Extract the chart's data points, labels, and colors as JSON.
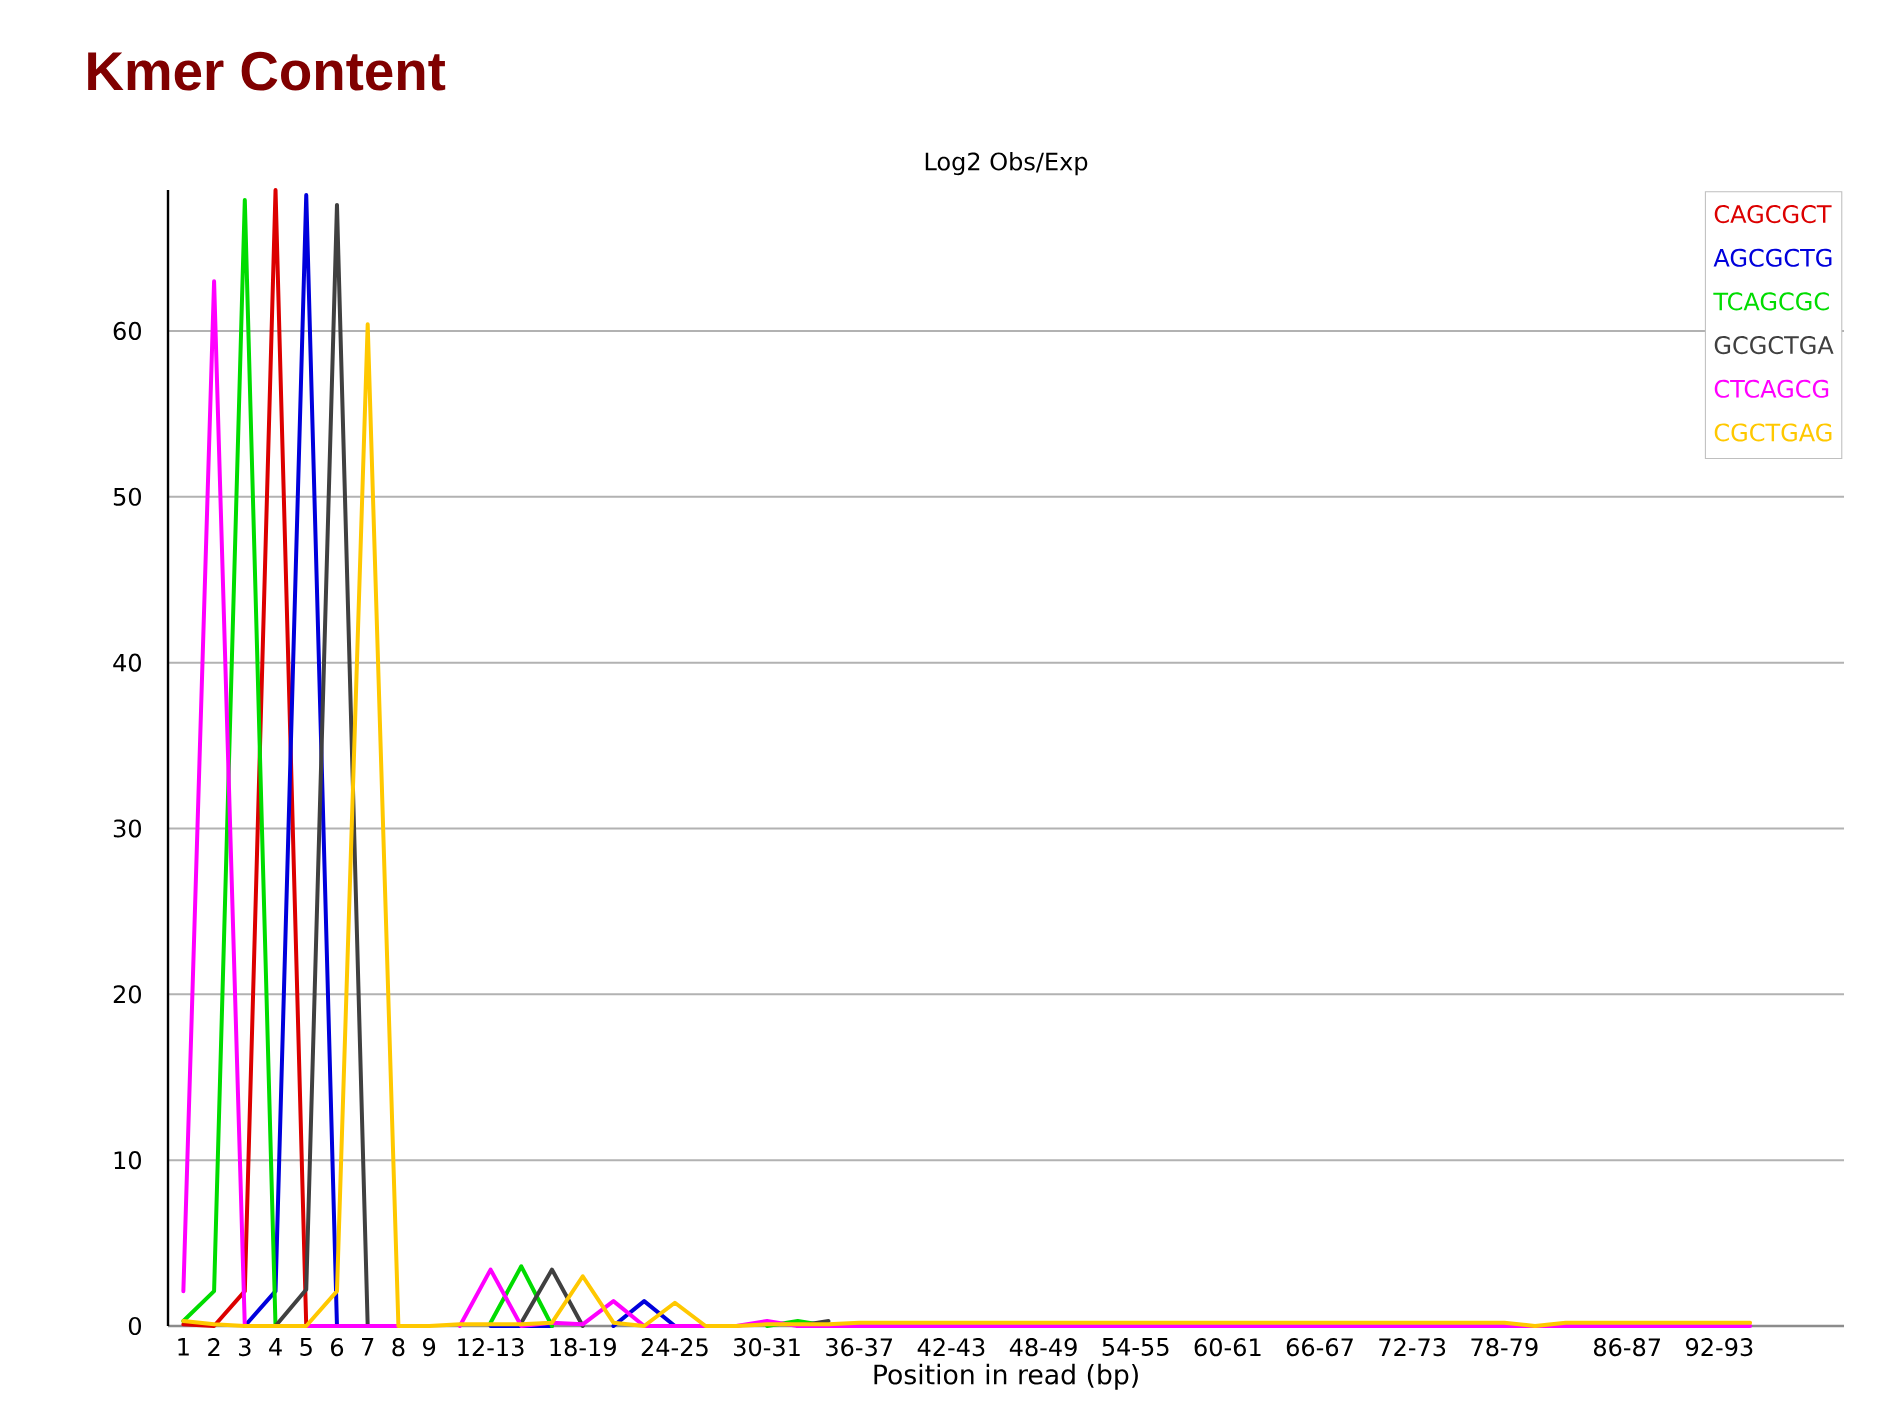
{
  "chart_data": {
    "type": "line",
    "title": "Kmer Content",
    "subtitle": "Log2 Obs/Exp",
    "xlabel": "Position in read (bp)",
    "categories": [
      "1",
      "2",
      "3",
      "4",
      "5",
      "6",
      "7",
      "8",
      "9",
      null,
      "12-13",
      null,
      null,
      "18-19",
      null,
      null,
      "24-25",
      null,
      null,
      "30-31",
      null,
      null,
      "36-37",
      null,
      null,
      "42-43",
      null,
      null,
      "48-49",
      null,
      null,
      "54-55",
      null,
      null,
      "60-61",
      null,
      null,
      "66-67",
      null,
      null,
      "72-73",
      null,
      null,
      "78-79",
      null,
      null,
      null,
      "86-87",
      null,
      null,
      "92-93",
      null
    ],
    "series": [
      {
        "name": "CAGCGCT",
        "color": "#dc0000",
        "values": [
          0.1,
          0,
          2.1,
          68.5,
          0,
          null,
          null,
          null,
          null,
          null,
          null,
          null,
          null,
          null,
          null,
          null,
          null,
          null,
          null,
          null,
          null,
          null,
          null,
          null,
          null,
          null,
          null,
          null,
          null,
          null,
          null,
          null,
          null,
          null,
          null,
          null,
          null,
          null,
          null,
          null,
          null,
          null,
          null,
          null,
          null,
          null,
          null,
          null,
          null,
          null,
          null,
          null
        ]
      },
      {
        "name": "AGCGCTG",
        "color": "#0000dc",
        "values": [
          null,
          null,
          0,
          2.1,
          68.2,
          0,
          null,
          null,
          null,
          null,
          0,
          0,
          0,
          null,
          0,
          1.5,
          0,
          null,
          null,
          null,
          null,
          null,
          null,
          null,
          null,
          null,
          null,
          null,
          null,
          null,
          null,
          null,
          null,
          null,
          null,
          null,
          null,
          null,
          null,
          null,
          null,
          null,
          null,
          null,
          null,
          null,
          null,
          null,
          null,
          null,
          null,
          null
        ]
      },
      {
        "name": "TCAGCGC",
        "color": "#00dc00",
        "values": [
          0.3,
          2.1,
          67.9,
          0,
          null,
          null,
          null,
          null,
          null,
          null,
          0.2,
          3.6,
          0,
          null,
          null,
          null,
          null,
          null,
          null,
          0,
          0.3,
          0,
          null,
          null,
          null,
          null,
          null,
          null,
          null,
          null,
          null,
          null,
          null,
          null,
          null,
          null,
          null,
          null,
          null,
          null,
          null,
          null,
          null,
          null,
          null,
          null,
          null,
          null,
          null,
          null,
          null,
          null
        ]
      },
      {
        "name": "GCGCTGA",
        "color": "#404040",
        "values": [
          null,
          null,
          null,
          0,
          2.2,
          67.6,
          0,
          null,
          null,
          null,
          null,
          0.2,
          3.4,
          0,
          null,
          null,
          null,
          null,
          null,
          null,
          0,
          0.3,
          null,
          null,
          null,
          null,
          null,
          null,
          null,
          null,
          null,
          null,
          null,
          null,
          null,
          null,
          null,
          null,
          null,
          null,
          null,
          null,
          null,
          null,
          null,
          null,
          null,
          null,
          null,
          null,
          null,
          null
        ]
      },
      {
        "name": "CTCAGCG",
        "color": "#ff00ff",
        "values": [
          2.1,
          63.0,
          0,
          null,
          0,
          0,
          0,
          0,
          null,
          0,
          3.4,
          0,
          0.2,
          0.1,
          1.5,
          0,
          0,
          0,
          0,
          0.3,
          0,
          0,
          0,
          0,
          0,
          0,
          0,
          0,
          0,
          0,
          0,
          0,
          0,
          0,
          0,
          0,
          0,
          0,
          0,
          0,
          0,
          0,
          0,
          0,
          0,
          0,
          0,
          0,
          0,
          0,
          0,
          0
        ]
      },
      {
        "name": "CGCTGAG",
        "color": "#ffc800",
        "values": [
          0.3,
          0.1,
          0,
          0,
          0,
          2.1,
          60.4,
          0,
          0,
          0.1,
          0.1,
          0.1,
          0.2,
          3.0,
          0.2,
          0,
          1.4,
          0,
          0,
          0.1,
          0.1,
          0.1,
          0.2,
          0.2,
          0.2,
          0.2,
          0.2,
          0.2,
          0.2,
          0.2,
          0.2,
          0.2,
          0.2,
          0.2,
          0.2,
          0.2,
          0.2,
          0.2,
          0.2,
          0.2,
          0.2,
          0.2,
          0.2,
          0.2,
          0,
          0.2,
          0.2,
          0.2,
          0.2,
          0.2,
          0.2,
          0.2
        ]
      }
    ],
    "ylim": [
      0,
      68.5
    ],
    "yticks": [
      0,
      10,
      20,
      30,
      40,
      50,
      60
    ],
    "grid": "y",
    "legend": "top right",
    "line_style": "solid"
  }
}
